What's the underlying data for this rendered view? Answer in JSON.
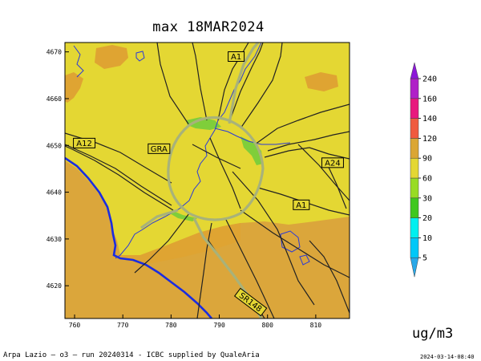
{
  "title": "max  18MAR2024",
  "units": "ug/m3",
  "footer": "Arpa Lazio — o3 — run 20240314 - ICBC supplied by QualeAria",
  "timestamp": "2024-03-14-08:40",
  "colors": {
    "background_fill": "#e4d733",
    "low_fill": "#dfa432",
    "sea_fill": "#dba63b",
    "green_band": "#7fce3a",
    "coastline": "#1a2ce0",
    "river": "#2a3ad8",
    "road": "#222222",
    "gra": "#a8b27a"
  },
  "map_extent": {
    "x_min": 758,
    "x_max": 817,
    "y_min": 4613,
    "y_max": 4672
  },
  "x_ticks": [
    "760",
    "770",
    "780",
    "790",
    "800",
    "810"
  ],
  "y_ticks": [
    "4670",
    "4660",
    "4650",
    "4640",
    "4630",
    "4620"
  ],
  "road_labels": [
    {
      "id": "a1-north",
      "text": "A1",
      "e": 793.5,
      "n": 4669
    },
    {
      "id": "a12",
      "text": "A12",
      "e": 762,
      "n": 4650.5
    },
    {
      "id": "gra",
      "text": "GRA",
      "e": 777.5,
      "n": 4649.3
    },
    {
      "id": "a24",
      "text": "A24",
      "e": 813.5,
      "n": 4646.3
    },
    {
      "id": "a1-south",
      "text": "A1",
      "e": 807,
      "n": 4637.3
    },
    {
      "id": "sr148",
      "text": "SR148",
      "e": 796.5,
      "n": 4616.5
    }
  ],
  "colorbar": {
    "levels": [
      "5",
      "10",
      "20",
      "30",
      "60",
      "90",
      "120",
      "140",
      "160",
      "240"
    ],
    "colors": [
      "#29a8e8",
      "#00c8f8",
      "#00f0f0",
      "#3fc81e",
      "#98dc24",
      "#e4d733",
      "#dba634",
      "#f05a3e",
      "#e8187e",
      "#b020c8",
      "#8c18d8"
    ]
  }
}
